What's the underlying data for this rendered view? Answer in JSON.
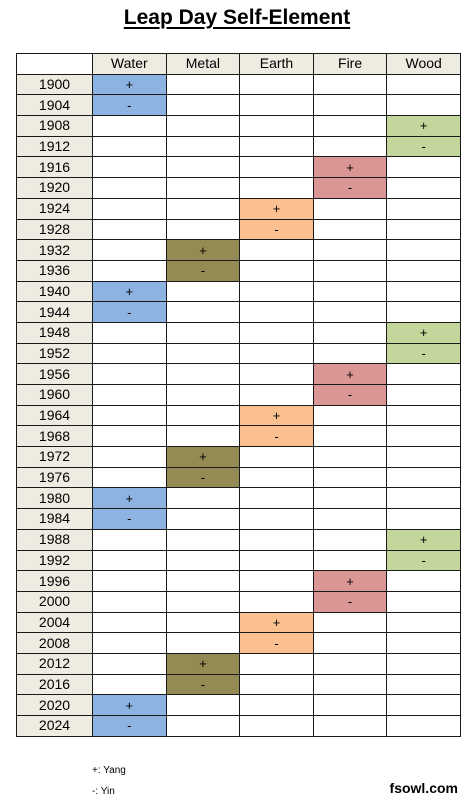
{
  "title": "Leap Day Self-Element",
  "chart_data": {
    "type": "table",
    "title": "Leap Day Self-Element",
    "columns": [
      "Water",
      "Metal",
      "Earth",
      "Fire",
      "Wood"
    ],
    "element_colors": {
      "Water": "#8db3e2",
      "Metal": "#948a54",
      "Earth": "#fbc08f",
      "Fire": "#da9694",
      "Wood": "#c3d69b"
    },
    "rows": [
      {
        "year": "1900",
        "element": "Water",
        "polarity": "+"
      },
      {
        "year": "1904",
        "element": "Water",
        "polarity": "-"
      },
      {
        "year": "1908",
        "element": "Wood",
        "polarity": "+"
      },
      {
        "year": "1912",
        "element": "Wood",
        "polarity": "-"
      },
      {
        "year": "1916",
        "element": "Fire",
        "polarity": "+"
      },
      {
        "year": "1920",
        "element": "Fire",
        "polarity": "-"
      },
      {
        "year": "1924",
        "element": "Earth",
        "polarity": "+"
      },
      {
        "year": "1928",
        "element": "Earth",
        "polarity": "-"
      },
      {
        "year": "1932",
        "element": "Metal",
        "polarity": "+"
      },
      {
        "year": "1936",
        "element": "Metal",
        "polarity": "-"
      },
      {
        "year": "1940",
        "element": "Water",
        "polarity": "+"
      },
      {
        "year": "1944",
        "element": "Water",
        "polarity": "-"
      },
      {
        "year": "1948",
        "element": "Wood",
        "polarity": "+"
      },
      {
        "year": "1952",
        "element": "Wood",
        "polarity": "-"
      },
      {
        "year": "1956",
        "element": "Fire",
        "polarity": "+"
      },
      {
        "year": "1960",
        "element": "Fire",
        "polarity": "-"
      },
      {
        "year": "1964",
        "element": "Earth",
        "polarity": "+"
      },
      {
        "year": "1968",
        "element": "Earth",
        "polarity": "-"
      },
      {
        "year": "1972",
        "element": "Metal",
        "polarity": "+"
      },
      {
        "year": "1976",
        "element": "Metal",
        "polarity": "-"
      },
      {
        "year": "1980",
        "element": "Water",
        "polarity": "+"
      },
      {
        "year": "1984",
        "element": "Water",
        "polarity": "-"
      },
      {
        "year": "1988",
        "element": "Wood",
        "polarity": "+"
      },
      {
        "year": "1992",
        "element": "Wood",
        "polarity": "-"
      },
      {
        "year": "1996",
        "element": "Fire",
        "polarity": "+"
      },
      {
        "year": "2000",
        "element": "Fire",
        "polarity": "-"
      },
      {
        "year": "2004",
        "element": "Earth",
        "polarity": "+"
      },
      {
        "year": "2008",
        "element": "Earth",
        "polarity": "-"
      },
      {
        "year": "2012",
        "element": "Metal",
        "polarity": "+"
      },
      {
        "year": "2016",
        "element": "Metal",
        "polarity": "-"
      },
      {
        "year": "2020",
        "element": "Water",
        "polarity": "+"
      },
      {
        "year": "2024",
        "element": "Water",
        "polarity": "-"
      }
    ],
    "legend": {
      "yang": "+: Yang",
      "yin": "-: Yin"
    }
  },
  "brand": "fsowl.com"
}
